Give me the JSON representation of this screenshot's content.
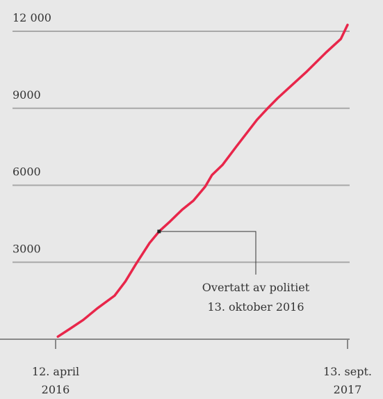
{
  "chart_data": {
    "type": "line",
    "x": [
      "2016-04-16",
      "2016-05-07",
      "2016-05-31",
      "2016-06-25",
      "2016-07-26",
      "2016-08-14",
      "2016-09-01",
      "2016-09-26",
      "2016-10-13",
      "2016-11-02",
      "2016-11-23",
      "2016-12-13",
      "2017-01-03",
      "2017-01-15",
      "2017-02-03",
      "2017-02-27",
      "2017-04-05",
      "2017-04-24",
      "2017-05-12",
      "2017-07-01",
      "2017-08-07",
      "2017-09-01",
      "2017-09-13"
    ],
    "series": [
      {
        "color": "#e8264a",
        "values": [
          100,
          400,
          750,
          1200,
          1700,
          2250,
          2900,
          3750,
          4200,
          4600,
          5050,
          5400,
          5950,
          6400,
          6800,
          7500,
          8550,
          9000,
          9400,
          10400,
          11200,
          11700,
          12250
        ]
      }
    ],
    "xlim": [
      "2016-04-12",
      "2017-09-13"
    ],
    "xticks": [
      {
        "value": "2016-04-12",
        "label": "12. april 2016"
      },
      {
        "value": "2017-09-13",
        "label": "13. sept. 2017"
      }
    ],
    "ylim": [
      0,
      12000
    ],
    "yticks": [
      {
        "value": 3000,
        "label": "3000"
      },
      {
        "value": 6000,
        "label": "6000"
      },
      {
        "value": 9000,
        "label": "9000"
      },
      {
        "value": 12000,
        "label": "12 000"
      }
    ],
    "grid": true,
    "annotation": {
      "x": "2016-10-13",
      "y": 4200,
      "lines": [
        "Overtatt av politiet",
        "13. oktober 2016"
      ]
    }
  }
}
